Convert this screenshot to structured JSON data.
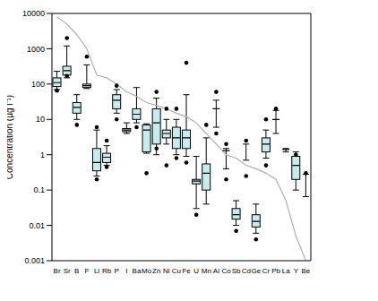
{
  "chart_data": {
    "type": "box",
    "y_label": "Concentration  (µg l⁻¹)",
    "log": "y",
    "ylim": [
      0.001,
      10000
    ],
    "yticks": [
      0.001,
      0.01,
      0.1,
      1,
      10,
      100,
      1000,
      10000
    ],
    "box_color": "#c6ecee",
    "categories": [
      "Br",
      "Sr",
      "B",
      "F",
      "Li",
      "Rb",
      "P",
      "I",
      "Ba",
      "Mo",
      "Zn",
      "Ni",
      "Cu",
      "Fe",
      "U",
      "Mn",
      "Al",
      "Co",
      "Sb",
      "Cd",
      "Ge",
      "Cr",
      "Pb",
      "La",
      "Y",
      "Be"
    ],
    "boxes": [
      {
        "min": 70,
        "q1": 85,
        "median": 110,
        "q3": 150,
        "max": 230,
        "outliers": [
          65
        ]
      },
      {
        "min": 150,
        "q1": 180,
        "median": 240,
        "q3": 320,
        "max": 1200,
        "outliers": [
          2000,
          170
        ]
      },
      {
        "min": 10,
        "q1": 15,
        "median": 22,
        "q3": 30,
        "max": 50,
        "outliers": [
          7
        ]
      },
      {
        "min": 75,
        "q1": 80,
        "median": 90,
        "q3": 100,
        "max": 350,
        "outliers": [
          600
        ]
      },
      {
        "min": 0.25,
        "q1": 0.35,
        "median": 0.6,
        "q3": 1.5,
        "max": 5,
        "outliers": [
          0.2,
          6
        ]
      },
      {
        "min": 0.5,
        "q1": 0.6,
        "median": 0.85,
        "q3": 1.1,
        "max": 1.8,
        "outliers": [
          0.45,
          2.5
        ]
      },
      {
        "min": 15,
        "q1": 20,
        "median": 35,
        "q3": 50,
        "max": 70,
        "outliers": [
          10,
          90
        ]
      },
      {
        "min": 4,
        "q1": 4.5,
        "median": 5,
        "q3": 5.5,
        "max": 8,
        "outliers": []
      },
      {
        "min": 8,
        "q1": 10,
        "median": 14,
        "q3": 20,
        "max": 80,
        "outliers": [
          6
        ]
      },
      {
        "min": 1.1,
        "q1": 1.2,
        "median": 5,
        "q3": 7,
        "max": 7.5,
        "outliers": [
          0.3
        ]
      },
      {
        "min": 1,
        "q1": 2,
        "median": 8,
        "q3": 20,
        "max": 40,
        "outliers": [
          60,
          1.5
        ]
      },
      {
        "min": 2,
        "q1": 3,
        "median": 4,
        "q3": 5,
        "max": 10,
        "outliers": [
          0.5,
          20
        ]
      },
      {
        "min": 1,
        "q1": 1.5,
        "median": 3,
        "q3": 6,
        "max": 10,
        "outliers": [
          0.8,
          20
        ]
      },
      {
        "min": 0.9,
        "q1": 1.5,
        "median": 3,
        "q3": 5,
        "max": 50,
        "outliers": [
          400,
          0.6
        ]
      },
      {
        "min": 0.03,
        "q1": 0.15,
        "median": 0.18,
        "q3": 0.2,
        "max": 0.9,
        "outliers": [
          0.02
        ]
      },
      {
        "min": 0.04,
        "q1": 0.1,
        "median": 0.3,
        "q3": 0.55,
        "max": 3,
        "outliers": [
          7
        ]
      },
      {
        "min": 6,
        "q1": null,
        "median": 20,
        "q3": null,
        "max": 35,
        "outliers": [
          60,
          4
        ]
      },
      {
        "min": 0.4,
        "q1": null,
        "median": 1.3,
        "q3": null,
        "max": 1.5,
        "outliers": [
          2,
          0.2
        ]
      },
      {
        "min": 0.01,
        "q1": 0.015,
        "median": 0.02,
        "q3": 0.03,
        "max": 0.05,
        "outliers": [
          0.007
        ]
      },
      {
        "min": 0.7,
        "q1": null,
        "median": null,
        "q3": null,
        "max": 2,
        "outliers": [
          0.25,
          2.5
        ]
      },
      {
        "min": 0.006,
        "q1": 0.009,
        "median": 0.013,
        "q3": 0.02,
        "max": 0.04,
        "outliers": [
          0.004
        ]
      },
      {
        "min": 0.8,
        "q1": 1.2,
        "median": 2,
        "q3": 3,
        "max": 5,
        "outliers": [
          0.5,
          10
        ]
      },
      {
        "min": 4,
        "q1": null,
        "median": 10,
        "q3": null,
        "max": 18,
        "outliers": [
          20
        ]
      },
      {
        "min": 1.2,
        "q1": null,
        "median": 1.4,
        "q3": null,
        "max": 1.5,
        "outliers": []
      },
      {
        "min": 0.1,
        "q1": 0.2,
        "median": 0.5,
        "q3": 0.9,
        "max": 1.2,
        "outliers": [
          1
        ]
      },
      {
        "min": 0.065,
        "q1": null,
        "median": null,
        "q3": null,
        "max": 0.28,
        "outliers": [
          0.3
        ]
      }
    ],
    "line": {
      "color": "#b0b0b0",
      "values": [
        8000,
        5000,
        2500,
        1000,
        180,
        150,
        100,
        60,
        45,
        30,
        25,
        20,
        15,
        12,
        8,
        4,
        2,
        1,
        0.8,
        0.5,
        0.4,
        0.3,
        0.2,
        0.05,
        0.005,
        0.001
      ]
    }
  }
}
